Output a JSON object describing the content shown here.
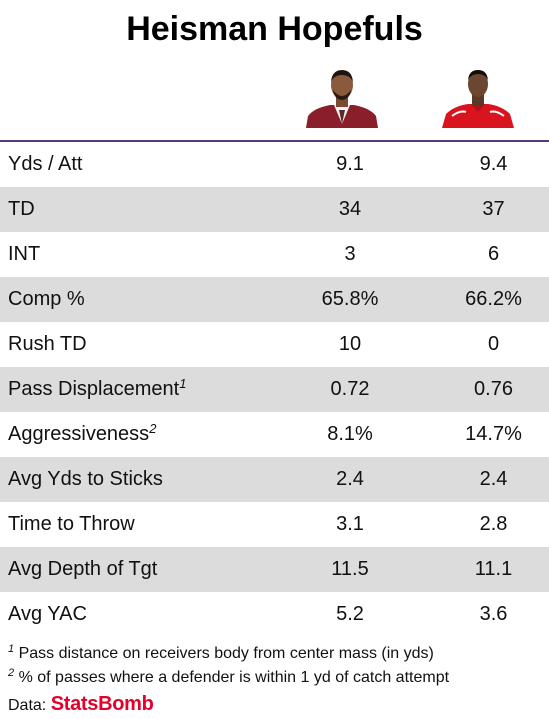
{
  "title": "Heisman Hopefuls",
  "icons": [
    "player-1-headshot-icon",
    "player-2-headshot-icon"
  ],
  "colors": {
    "rule": "#5b3a7a",
    "shaded_row": "#dcdcdc",
    "brand": "#e3002b",
    "player1_jacket": "#8a1e2a",
    "player2_jersey": "#d9141e"
  },
  "chart_data": {
    "type": "table",
    "columns": [
      "",
      "",
      ""
    ],
    "rows": [
      {
        "label": "Yds / Att",
        "sup": "",
        "values": [
          "9.1",
          "9.4"
        ]
      },
      {
        "label": "TD",
        "sup": "",
        "values": [
          "34",
          "37"
        ]
      },
      {
        "label": "INT",
        "sup": "",
        "values": [
          "3",
          "6"
        ]
      },
      {
        "label": "Comp %",
        "sup": "",
        "values": [
          "65.8%",
          "66.2%"
        ]
      },
      {
        "label": "Rush TD",
        "sup": "",
        "values": [
          "10",
          "0"
        ]
      },
      {
        "label": "Pass Displacement",
        "sup": "1",
        "values": [
          "0.72",
          "0.76"
        ]
      },
      {
        "label": "Aggressiveness",
        "sup": "2",
        "values": [
          "8.1%",
          "14.7%"
        ]
      },
      {
        "label": "Avg Yds to Sticks",
        "sup": "",
        "values": [
          "2.4",
          "2.4"
        ]
      },
      {
        "label": "Time to Throw",
        "sup": "",
        "values": [
          "3.1",
          "2.8"
        ]
      },
      {
        "label": "Avg Depth of Tgt",
        "sup": "",
        "values": [
          "11.5",
          "11.1"
        ]
      },
      {
        "label": "Avg YAC",
        "sup": "",
        "values": [
          "5.2",
          "3.6"
        ]
      }
    ]
  },
  "footnotes": [
    {
      "mark": "1",
      "text": "Pass distance on receivers body from center mass (in yds)"
    },
    {
      "mark": "2",
      "text": "% of passes where a defender is within 1 yd of catch attempt"
    }
  ],
  "source": {
    "prefix": "Data:",
    "brand": "StatsBomb"
  }
}
